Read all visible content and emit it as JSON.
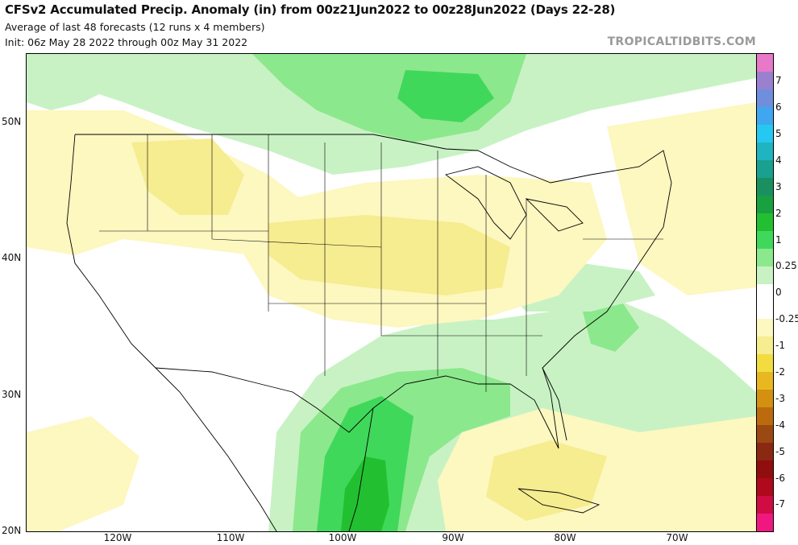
{
  "header": {
    "title": "CFSv2 Accumulated Precip. Anomaly (in) from 00z21Jun2022 to 00z28Jun2022 (Days 22-28)",
    "subtitle": "Average of last 48 forecasts (12 runs x 4 members)",
    "init": "Init: 06z May 28 2022 through 00z May 31 2022",
    "brand": "TROPICALTIDBITS.COM"
  },
  "axes": {
    "lat_labels": [
      "50N",
      "40N",
      "30N",
      "20N"
    ],
    "lon_labels": [
      "120W",
      "110W",
      "100W",
      "90W",
      "80W",
      "70W"
    ]
  },
  "legend": {
    "tick_labels": [
      "7",
      "6",
      "5",
      "4",
      "3",
      "2",
      "1",
      "0.25",
      "0",
      "-0.25",
      "-1",
      "-2",
      "-3",
      "-4",
      "-5",
      "-6",
      "-7"
    ],
    "colors": [
      "#e878c8",
      "#9b80d0",
      "#6f8fdc",
      "#3fa7f0",
      "#25c8f0",
      "#1fb4c0",
      "#1aa090",
      "#1a9060",
      "#19a040",
      "#22c030",
      "#40d85a",
      "#8ce88c",
      "#c8f2c4",
      "#ffffff",
      "#ffffff",
      "#fdf7c0",
      "#f6ec90",
      "#f2dc40",
      "#e8b820",
      "#d49010",
      "#bc6a0e",
      "#9c4812",
      "#8a2812",
      "#900e0e",
      "#b0081c",
      "#d00c44",
      "#f01880"
    ]
  },
  "map": {
    "domain": "CONUS and surroundings",
    "anomaly_colors": {
      "light_green": "#c8f2c4",
      "mid_green": "#8ce88c",
      "green": "#40d85a",
      "bright_green": "#22c030",
      "pale_yellow": "#fdf7c0",
      "yellow": "#f6ec90",
      "white": "#ffffff"
    }
  }
}
